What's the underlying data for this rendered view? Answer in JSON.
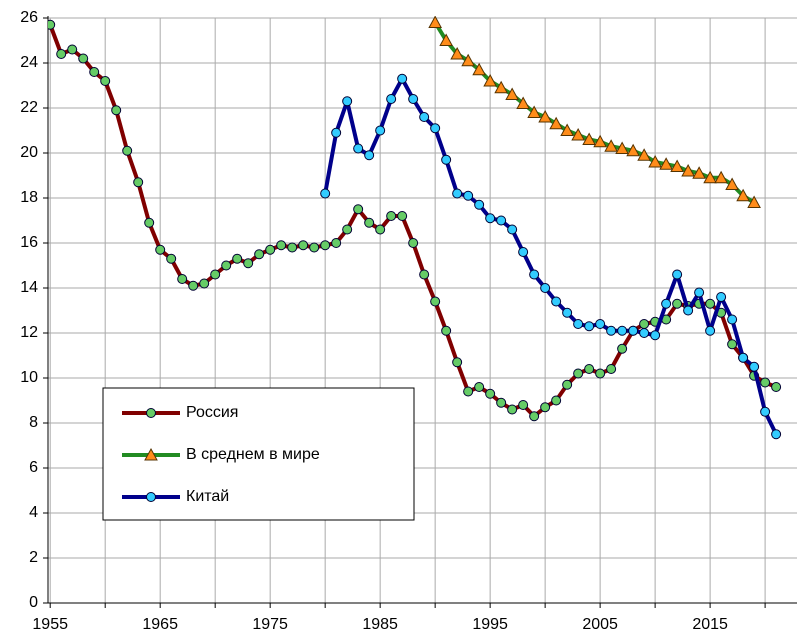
{
  "chart_data": {
    "type": "line",
    "x": [
      1955,
      1956,
      1957,
      1958,
      1959,
      1960,
      1961,
      1962,
      1963,
      1964,
      1965,
      1966,
      1967,
      1968,
      1969,
      1970,
      1971,
      1972,
      1973,
      1974,
      1975,
      1976,
      1977,
      1978,
      1979,
      1980,
      1981,
      1982,
      1983,
      1984,
      1985,
      1986,
      1987,
      1988,
      1989,
      1990,
      1991,
      1992,
      1993,
      1994,
      1995,
      1996,
      1997,
      1998,
      1999,
      2000,
      2001,
      2002,
      2003,
      2004,
      2005,
      2006,
      2007,
      2008,
      2009,
      2010,
      2011,
      2012,
      2013,
      2014,
      2015,
      2016,
      2017,
      2018,
      2019,
      2020,
      2021
    ],
    "series": [
      {
        "name": "Россия",
        "color": "#800000",
        "marker": "circle",
        "marker_color": "#66cc66",
        "values": [
          25.7,
          24.4,
          24.6,
          24.2,
          23.6,
          23.2,
          21.9,
          20.1,
          18.7,
          16.9,
          15.7,
          15.3,
          14.4,
          14.1,
          14.2,
          14.6,
          15.0,
          15.3,
          15.1,
          15.5,
          15.7,
          15.9,
          15.8,
          15.9,
          15.8,
          15.9,
          16.0,
          16.6,
          17.5,
          16.9,
          16.6,
          17.2,
          17.2,
          16.0,
          14.6,
          13.4,
          12.1,
          10.7,
          9.4,
          9.6,
          9.3,
          8.9,
          8.6,
          8.8,
          8.3,
          8.7,
          9.0,
          9.7,
          10.2,
          10.4,
          10.2,
          10.4,
          11.3,
          12.1,
          12.4,
          12.5,
          12.6,
          13.3,
          13.2,
          13.3,
          13.3,
          12.9,
          11.5,
          10.9,
          10.1,
          9.8,
          9.6
        ]
      },
      {
        "name": "В среднем в мире",
        "color": "#228b22",
        "marker": "triangle",
        "marker_color": "#ff8c1a",
        "values": [
          null,
          null,
          null,
          null,
          null,
          null,
          null,
          null,
          null,
          null,
          null,
          null,
          null,
          null,
          null,
          null,
          null,
          null,
          null,
          null,
          null,
          null,
          null,
          null,
          null,
          null,
          null,
          null,
          null,
          null,
          null,
          null,
          null,
          null,
          null,
          25.8,
          25.0,
          24.4,
          24.1,
          23.7,
          23.2,
          22.9,
          22.6,
          22.2,
          21.8,
          21.6,
          21.3,
          21.0,
          20.8,
          20.6,
          20.5,
          20.3,
          20.2,
          20.1,
          19.9,
          19.6,
          19.5,
          19.4,
          19.2,
          19.1,
          18.9,
          18.9,
          18.6,
          18.1,
          17.8,
          null,
          null
        ]
      },
      {
        "name": "Китай",
        "color": "#00008b",
        "marker": "circle",
        "marker_color": "#33ccff",
        "values": [
          null,
          null,
          null,
          null,
          null,
          null,
          null,
          null,
          null,
          null,
          null,
          null,
          null,
          null,
          null,
          null,
          null,
          null,
          null,
          null,
          null,
          null,
          null,
          null,
          null,
          18.2,
          20.9,
          22.3,
          20.2,
          19.9,
          21.0,
          22.4,
          23.3,
          22.4,
          21.6,
          21.1,
          19.7,
          18.2,
          18.1,
          17.7,
          17.1,
          17.0,
          16.6,
          15.6,
          14.6,
          14.0,
          13.4,
          12.9,
          12.4,
          12.3,
          12.4,
          12.1,
          12.1,
          12.1,
          12.0,
          11.9,
          13.3,
          14.6,
          13.0,
          13.8,
          12.1,
          13.6,
          12.6,
          10.9,
          10.5,
          8.5,
          7.5
        ]
      }
    ],
    "xlim": [
      1954.8,
      2022.9
    ],
    "xticks": [
      1955,
      1965,
      1975,
      1985,
      1995,
      2005,
      2015
    ],
    "xminor": [
      1960,
      1970,
      1980,
      1990,
      2000,
      2010,
      2020
    ],
    "ylim": [
      0,
      26
    ],
    "yticks": [
      0,
      2,
      4,
      6,
      8,
      10,
      12,
      14,
      16,
      18,
      20,
      22,
      24,
      26
    ],
    "grid": true,
    "legend_position": "lower left"
  }
}
